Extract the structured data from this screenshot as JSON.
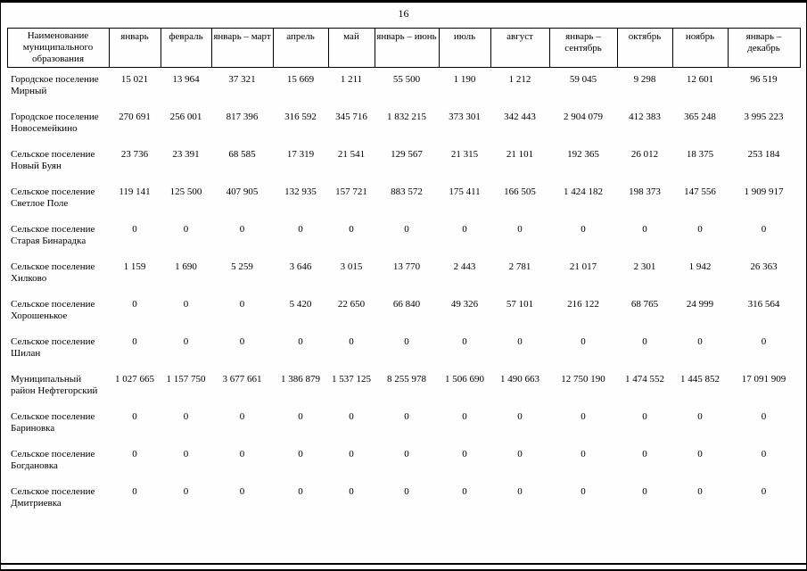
{
  "page": {
    "number": "16"
  },
  "table": {
    "name_header": "Наименование муниципального образования",
    "columns": [
      "январь",
      "февраль",
      "январь – март",
      "апрель",
      "май",
      "январь – июнь",
      "июль",
      "август",
      "январь – сентябрь",
      "октябрь",
      "ноябрь",
      "январь – декабрь"
    ],
    "rows": [
      {
        "name": "Городское поселение Мирный",
        "values": [
          "15 021",
          "13 964",
          "37 321",
          "15 669",
          "1 211",
          "55 500",
          "1 190",
          "1 212",
          "59 045",
          "9 298",
          "12 601",
          "96 519"
        ]
      },
      {
        "name": "Городское поселение Новосемейкино",
        "values": [
          "270 691",
          "256 001",
          "817 396",
          "316 592",
          "345 716",
          "1 832 215",
          "373 301",
          "342 443",
          "2 904 079",
          "412 383",
          "365 248",
          "3 995 223"
        ]
      },
      {
        "name": "Сельское поселение Новый Буян",
        "values": [
          "23 736",
          "23 391",
          "68 585",
          "17 319",
          "21 541",
          "129 567",
          "21 315",
          "21 101",
          "192 365",
          "26 012",
          "18 375",
          "253 184"
        ]
      },
      {
        "name": "Сельское поселение Светлое Поле",
        "values": [
          "119 141",
          "125 500",
          "407 905",
          "132 935",
          "157 721",
          "883 572",
          "175 411",
          "166 505",
          "1 424 182",
          "198 373",
          "147 556",
          "1 909 917"
        ]
      },
      {
        "name": "Сельское поселение Старая Бинарадка",
        "values": [
          "0",
          "0",
          "0",
          "0",
          "0",
          "0",
          "0",
          "0",
          "0",
          "0",
          "0",
          "0"
        ]
      },
      {
        "name": "Сельское поселение Хилково",
        "values": [
          "1 159",
          "1 690",
          "5 259",
          "3 646",
          "3 015",
          "13 770",
          "2 443",
          "2 781",
          "21 017",
          "2 301",
          "1 942",
          "26 363"
        ]
      },
      {
        "name": "Сельское поселение Хорошенькое",
        "values": [
          "0",
          "0",
          "0",
          "5 420",
          "22 650",
          "66 840",
          "49 326",
          "57 101",
          "216 122",
          "68 765",
          "24 999",
          "316 564"
        ]
      },
      {
        "name": "Сельское поселение Шилан",
        "values": [
          "0",
          "0",
          "0",
          "0",
          "0",
          "0",
          "0",
          "0",
          "0",
          "0",
          "0",
          "0"
        ]
      },
      {
        "name": "Муниципальный район Нефтегорский",
        "values": [
          "1 027 665",
          "1 157 750",
          "3 677 661",
          "1 386 879",
          "1 537 125",
          "8 255 978",
          "1 506 690",
          "1 490 663",
          "12 750 190",
          "1 474 552",
          "1 445 852",
          "17 091 909"
        ]
      },
      {
        "name": "Сельское поселение Бариновка",
        "values": [
          "0",
          "0",
          "0",
          "0",
          "0",
          "0",
          "0",
          "0",
          "0",
          "0",
          "0",
          "0"
        ]
      },
      {
        "name": "Сельское поселение Богдановка",
        "values": [
          "0",
          "0",
          "0",
          "0",
          "0",
          "0",
          "0",
          "0",
          "0",
          "0",
          "0",
          "0"
        ]
      },
      {
        "name": "Сельское поселение Дмитриевка",
        "values": [
          "0",
          "0",
          "0",
          "0",
          "0",
          "0",
          "0",
          "0",
          "0",
          "0",
          "0",
          "0"
        ]
      }
    ]
  }
}
